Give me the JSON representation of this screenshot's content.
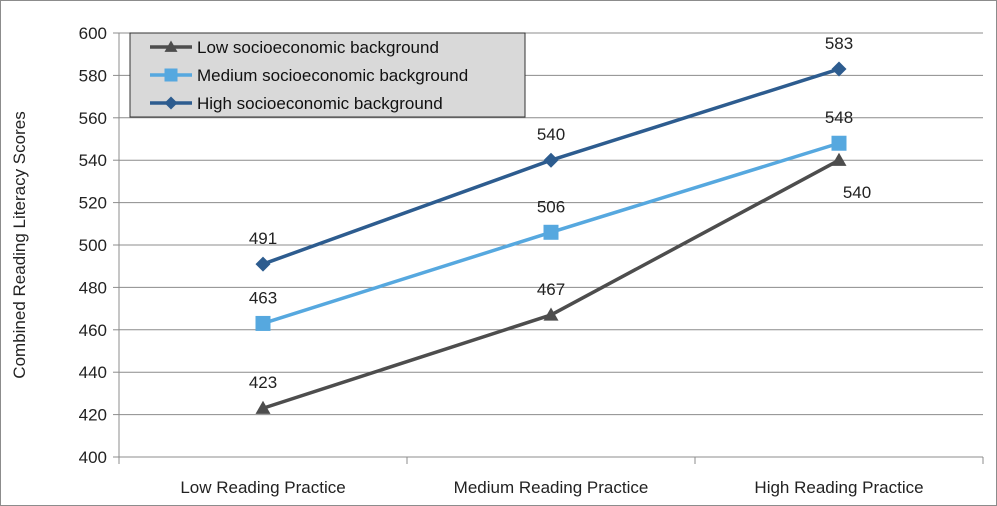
{
  "chart_data": {
    "type": "line",
    "title": "",
    "xlabel": "",
    "ylabel": "Combined Reading Literacy Scores",
    "categories": [
      "Low Reading Practice",
      "Medium Reading Practice",
      "High Reading Practice"
    ],
    "ylim": [
      400,
      600
    ],
    "yticks": [
      400,
      420,
      440,
      460,
      480,
      500,
      520,
      540,
      560,
      580,
      600
    ],
    "grid": true,
    "legend_position": "top-left",
    "series": [
      {
        "name": "Low socioeconomic background",
        "values": [
          423,
          467,
          540
        ],
        "labels": [
          "423",
          "467",
          "540"
        ],
        "color": "#4d4d4d",
        "marker": "triangle",
        "label_placement": [
          "above",
          "above",
          "below-right"
        ]
      },
      {
        "name": "Medium socioeconomic background",
        "values": [
          463,
          506,
          548
        ],
        "labels": [
          "463",
          "506",
          "548"
        ],
        "color": "#56a8df",
        "marker": "square",
        "label_placement": [
          "above",
          "above",
          "above"
        ]
      },
      {
        "name": "High socioeconomic background",
        "values": [
          491,
          540,
          583
        ],
        "labels": [
          "491",
          "540",
          "583"
        ],
        "color": "#2d5c8f",
        "marker": "diamond",
        "label_placement": [
          "above",
          "above",
          "above"
        ]
      }
    ]
  }
}
